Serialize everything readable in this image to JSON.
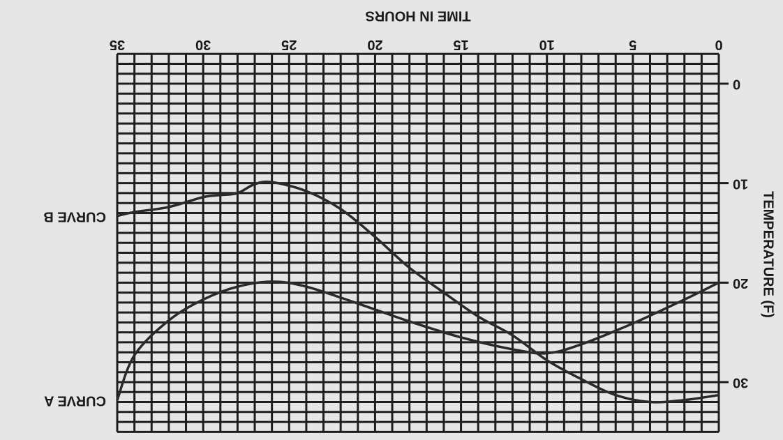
{
  "chart_data": {
    "type": "line",
    "x_label": "TIME IN HOURS",
    "y_label": "TEMPERATURE (F)",
    "xlim": [
      0,
      35
    ],
    "ylim": [
      -3,
      35
    ],
    "xticks": [
      0,
      5,
      10,
      15,
      20,
      25,
      30,
      35
    ],
    "yticks": [
      0,
      10,
      20,
      30
    ],
    "grid": true,
    "minor_grid": {
      "x": 1,
      "y": 1
    },
    "color": "#2a2a2a",
    "series": [
      {
        "name": "CURVE A",
        "color": "#2a2a2a",
        "x": [
          0,
          2,
          5,
          8,
          10,
          12,
          15,
          18,
          21,
          24,
          26,
          28,
          30,
          32,
          34,
          35
        ],
        "values": [
          20,
          21.7,
          24.1,
          26.2,
          27.1,
          26.7,
          25.5,
          23.9,
          22.1,
          20.4,
          19.9,
          20.4,
          21.7,
          23.8,
          27.3,
          31.8
        ]
      },
      {
        "name": "CURVE B",
        "color": "#2a2a2a",
        "x": [
          0,
          2,
          4,
          6,
          8,
          10,
          12,
          14,
          16,
          18,
          20,
          22,
          24,
          26,
          27,
          28,
          29,
          30,
          32,
          34,
          35
        ],
        "values": [
          31.3,
          31.8,
          32,
          31.3,
          29.7,
          27.8,
          25.3,
          23.4,
          21,
          18.5,
          15.4,
          12.6,
          10.8,
          9.9,
          10.1,
          11,
          11.2,
          11.4,
          12.4,
          12.9,
          13.3
        ]
      }
    ]
  }
}
